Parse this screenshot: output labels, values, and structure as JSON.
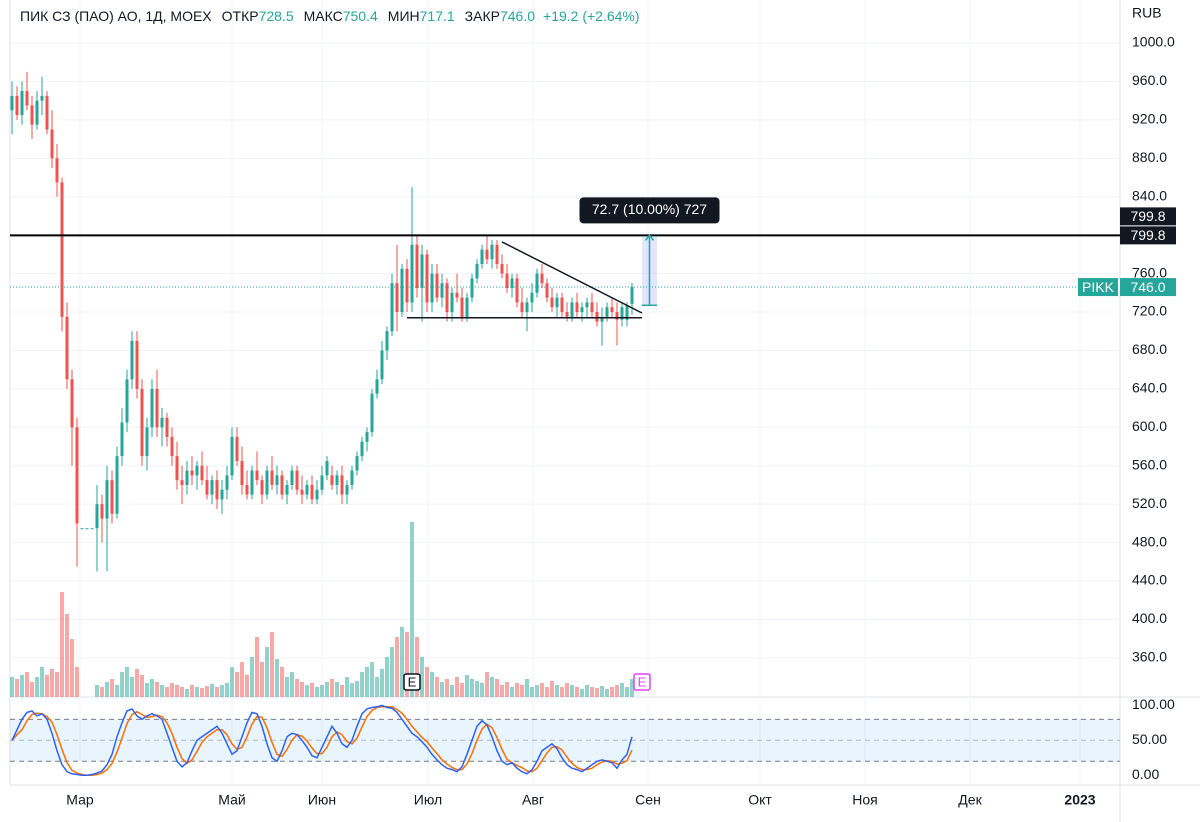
{
  "chart_data": {
    "type": "candlestick",
    "header": {
      "symbol": "ПИК СЗ (ПАО) АО, 1Д, MOEX",
      "fields": [
        {
          "label": "ОТКР",
          "value": "728.5"
        },
        {
          "label": "МАКС",
          "value": "750.4"
        },
        {
          "label": "МИН",
          "value": "717.1"
        },
        {
          "label": "ЗАКР",
          "value": "746.0"
        }
      ],
      "change": "+19.2 (+2.64%)"
    },
    "currency": "RUB",
    "symbol_tag": "PIKK",
    "colors": {
      "up": "#26a69a",
      "down": "#ef5350"
    },
    "candles": [
      [
        930,
        960,
        905,
        945
      ],
      [
        945,
        955,
        920,
        925
      ],
      [
        925,
        960,
        915,
        950
      ],
      [
        950,
        970,
        930,
        935
      ],
      [
        935,
        945,
        900,
        915
      ],
      [
        915,
        950,
        910,
        940
      ],
      [
        940,
        965,
        925,
        945
      ],
      [
        945,
        950,
        905,
        910
      ],
      [
        910,
        930,
        870,
        880
      ],
      [
        880,
        895,
        840,
        855
      ],
      [
        855,
        860,
        700,
        715
      ],
      [
        715,
        730,
        640,
        650
      ],
      [
        650,
        660,
        560,
        600
      ],
      [
        600,
        610,
        455,
        500
      ],
      [
        495,
        495,
        495,
        495
      ],
      [
        495,
        495,
        495,
        495
      ],
      [
        495,
        495,
        495,
        495
      ],
      [
        495,
        540,
        450,
        520
      ],
      [
        520,
        530,
        480,
        505
      ],
      [
        505,
        560,
        450,
        545
      ],
      [
        545,
        555,
        500,
        510
      ],
      [
        510,
        580,
        505,
        570
      ],
      [
        570,
        620,
        560,
        605
      ],
      [
        605,
        660,
        595,
        650
      ],
      [
        650,
        700,
        640,
        690
      ],
      [
        690,
        700,
        630,
        640
      ],
      [
        640,
        650,
        560,
        570
      ],
      [
        570,
        610,
        555,
        600
      ],
      [
        600,
        650,
        590,
        640
      ],
      [
        640,
        660,
        590,
        600
      ],
      [
        600,
        620,
        580,
        610
      ],
      [
        610,
        615,
        580,
        590
      ],
      [
        590,
        600,
        560,
        570
      ],
      [
        570,
        585,
        535,
        545
      ],
      [
        545,
        560,
        520,
        540
      ],
      [
        540,
        565,
        530,
        555
      ],
      [
        555,
        570,
        540,
        550
      ],
      [
        550,
        565,
        535,
        560
      ],
      [
        560,
        575,
        540,
        545
      ],
      [
        545,
        560,
        525,
        530
      ],
      [
        530,
        550,
        520,
        545
      ],
      [
        545,
        555,
        515,
        525
      ],
      [
        525,
        545,
        510,
        535
      ],
      [
        535,
        560,
        525,
        550
      ],
      [
        550,
        600,
        545,
        590
      ],
      [
        590,
        600,
        560,
        565
      ],
      [
        565,
        580,
        530,
        540
      ],
      [
        540,
        555,
        525,
        530
      ],
      [
        530,
        560,
        525,
        555
      ],
      [
        555,
        575,
        540,
        545
      ],
      [
        545,
        550,
        520,
        530
      ],
      [
        530,
        560,
        525,
        555
      ],
      [
        555,
        570,
        535,
        540
      ],
      [
        540,
        560,
        530,
        550
      ],
      [
        550,
        555,
        525,
        530
      ],
      [
        530,
        545,
        520,
        540
      ],
      [
        540,
        560,
        535,
        555
      ],
      [
        555,
        560,
        530,
        535
      ],
      [
        535,
        550,
        520,
        530
      ],
      [
        530,
        545,
        525,
        540
      ],
      [
        540,
        550,
        520,
        525
      ],
      [
        525,
        545,
        520,
        535
      ],
      [
        535,
        560,
        530,
        550
      ],
      [
        550,
        570,
        545,
        565
      ],
      [
        550,
        560,
        535,
        540
      ],
      [
        540,
        555,
        530,
        550
      ],
      [
        550,
        560,
        520,
        530
      ],
      [
        530,
        545,
        520,
        540
      ],
      [
        540,
        560,
        535,
        555
      ],
      [
        555,
        575,
        550,
        570
      ],
      [
        570,
        590,
        565,
        585
      ],
      [
        585,
        600,
        575,
        595
      ],
      [
        595,
        640,
        590,
        635
      ],
      [
        635,
        660,
        630,
        650
      ],
      [
        650,
        690,
        645,
        680
      ],
      [
        680,
        705,
        670,
        700
      ],
      [
        700,
        760,
        695,
        750
      ],
      [
        750,
        790,
        700,
        720
      ],
      [
        720,
        770,
        715,
        765
      ],
      [
        765,
        775,
        720,
        730
      ],
      [
        730,
        850,
        720,
        790
      ],
      [
        790,
        800,
        735,
        745
      ],
      [
        745,
        790,
        710,
        780
      ],
      [
        780,
        785,
        720,
        730
      ],
      [
        730,
        770,
        720,
        760
      ],
      [
        760,
        770,
        730,
        735
      ],
      [
        735,
        760,
        725,
        750
      ],
      [
        750,
        755,
        710,
        720
      ],
      [
        720,
        745,
        710,
        740
      ],
      [
        740,
        760,
        730,
        735
      ],
      [
        735,
        745,
        710,
        715
      ],
      [
        715,
        740,
        710,
        735
      ],
      [
        735,
        760,
        730,
        755
      ],
      [
        755,
        775,
        750,
        770
      ],
      [
        770,
        790,
        765,
        785
      ],
      [
        785,
        800,
        770,
        775
      ],
      [
        775,
        795,
        765,
        790
      ],
      [
        790,
        795,
        765,
        770
      ],
      [
        770,
        780,
        755,
        760
      ],
      [
        760,
        770,
        740,
        745
      ],
      [
        745,
        760,
        735,
        755
      ],
      [
        755,
        760,
        725,
        730
      ],
      [
        730,
        745,
        715,
        720
      ],
      [
        720,
        735,
        700,
        730
      ],
      [
        730,
        750,
        720,
        740
      ],
      [
        740,
        765,
        735,
        760
      ],
      [
        760,
        770,
        745,
        750
      ],
      [
        750,
        755,
        730,
        735
      ],
      [
        735,
        745,
        720,
        725
      ],
      [
        725,
        740,
        715,
        735
      ],
      [
        735,
        740,
        715,
        720
      ],
      [
        720,
        730,
        710,
        715
      ],
      [
        715,
        735,
        710,
        730
      ],
      [
        730,
        740,
        715,
        720
      ],
      [
        720,
        730,
        710,
        725
      ],
      [
        725,
        735,
        715,
        730
      ],
      [
        730,
        740,
        715,
        720
      ],
      [
        720,
        730,
        705,
        710
      ],
      [
        710,
        725,
        685,
        715
      ],
      [
        715,
        730,
        710,
        725
      ],
      [
        725,
        735,
        715,
        720
      ],
      [
        720,
        730,
        685,
        712
      ],
      [
        712,
        730,
        705,
        725
      ],
      [
        712,
        730,
        705,
        726.8
      ],
      [
        728.5,
        750.4,
        717.1,
        746.0
      ]
    ],
    "volume": [
      20,
      18,
      22,
      25,
      15,
      20,
      30,
      22,
      28,
      25,
      105,
      83,
      58,
      30,
      0,
      0,
      0,
      12,
      10,
      15,
      18,
      12,
      25,
      30,
      20,
      28,
      22,
      14,
      18,
      15,
      12,
      10,
      14,
      12,
      10,
      8,
      12,
      10,
      9,
      11,
      13,
      10,
      12,
      14,
      30,
      25,
      35,
      22,
      40,
      60,
      35,
      50,
      65,
      38,
      30,
      20,
      25,
      18,
      15,
      12,
      14,
      10,
      12,
      15,
      18,
      15,
      12,
      20,
      14,
      16,
      25,
      30,
      35,
      20,
      28,
      40,
      50,
      60,
      70,
      65,
      175,
      60,
      40,
      30,
      25,
      20,
      15,
      18,
      12,
      20,
      14,
      22,
      18,
      16,
      14,
      25,
      20,
      18,
      12,
      15,
      10,
      14,
      12,
      18,
      10,
      12,
      14,
      10,
      16,
      12,
      10,
      14,
      12,
      10,
      8,
      12,
      10,
      9,
      11,
      8,
      10,
      12,
      14,
      10,
      18
    ],
    "volume_lim": [
      0,
      400
    ],
    "xlim": [
      -0.4,
      221.6
    ],
    "xticks": [
      {
        "value": 13.6,
        "label": "Мар"
      },
      {
        "value": 44,
        "label": "Май"
      },
      {
        "value": 62,
        "label": "Июн"
      },
      {
        "value": 83.2,
        "label": "Июл"
      },
      {
        "value": 104.2,
        "label": "Авг"
      },
      {
        "value": 127.2,
        "label": "Сен"
      },
      {
        "value": 149.6,
        "label": "Окт"
      },
      {
        "value": 170.6,
        "label": "Ноя"
      },
      {
        "value": 191.6,
        "label": "Дек"
      },
      {
        "value": 213.6,
        "label": "2023"
      }
    ],
    "ylim": [
      319.3,
      1044.8
    ],
    "yticks": [
      {
        "value": 360,
        "label": "360.0"
      },
      {
        "value": 400,
        "label": "400.0"
      },
      {
        "value": 440,
        "label": "440.0"
      },
      {
        "value": 480,
        "label": "480.0"
      },
      {
        "value": 520,
        "label": "520.0"
      },
      {
        "value": 560,
        "label": "560.0"
      },
      {
        "value": 600,
        "label": "600.0"
      },
      {
        "value": 640,
        "label": "640.0"
      },
      {
        "value": 680,
        "label": "680.0"
      },
      {
        "value": 720,
        "label": "720.0"
      },
      {
        "value": 760,
        "label": "760.0"
      },
      {
        "value": 800,
        "label": "800.0"
      },
      {
        "value": 840,
        "label": "840.0"
      },
      {
        "value": 880,
        "label": "880.0"
      },
      {
        "value": 920,
        "label": "920.0"
      },
      {
        "value": 960,
        "label": "960.0"
      },
      {
        "value": 1000,
        "label": "1000.0"
      }
    ],
    "grid": true,
    "hline": {
      "price": 799.8,
      "color": "#000000"
    },
    "trend_lines": [
      [
        [
          98,
          793
        ],
        [
          126,
          719
        ]
      ],
      [
        [
          79,
          714
        ],
        [
          126,
          714
        ]
      ]
    ],
    "measure": {
      "from": 727,
      "to": 799.8,
      "x": [
        126,
        129
      ],
      "label": "72.7 (10.00%) 727"
    },
    "events": [
      {
        "x": 80,
        "label": "E",
        "color": "#131722"
      },
      {
        "x": 126,
        "label": "E",
        "color": "#e040fb"
      }
    ],
    "stochastic": {
      "ylim": [
        -14,
        112
      ],
      "yticks": [
        {
          "value": 100,
          "label": "100.00"
        },
        {
          "value": 50,
          "label": "50.00"
        },
        {
          "value": 0,
          "label": "0.00"
        }
      ],
      "bands": [
        20,
        80
      ],
      "series": [
        {
          "color": "#2962ff",
          "values": [
            50,
            65,
            80,
            90,
            92,
            85,
            88,
            80,
            60,
            35,
            15,
            5,
            2,
            1,
            0,
            0,
            1,
            3,
            6,
            15,
            30,
            55,
            75,
            92,
            95,
            85,
            80,
            85,
            88,
            85,
            80,
            60,
            40,
            20,
            12,
            18,
            35,
            50,
            55,
            60,
            65,
            70,
            60,
            45,
            30,
            35,
            55,
            75,
            90,
            88,
            70,
            45,
            25,
            20,
            35,
            55,
            60,
            58,
            50,
            40,
            28,
            25,
            40,
            55,
            70,
            60,
            45,
            40,
            50,
            70,
            88,
            95,
            97,
            98,
            100,
            97,
            96,
            90,
            80,
            70,
            60,
            55,
            48,
            40,
            30,
            22,
            15,
            10,
            8,
            5,
            12,
            30,
            50,
            70,
            78,
            72,
            55,
            35,
            20,
            15,
            18,
            10,
            5,
            2,
            8,
            20,
            35,
            40,
            45,
            38,
            25,
            15,
            10,
            8,
            5,
            10,
            15,
            20,
            22,
            20,
            18,
            10,
            22,
            30,
            55
          ]
        },
        {
          "color": "#ff6d00",
          "values": [
            50,
            58,
            65,
            78,
            87,
            89,
            88,
            84,
            76,
            58,
            37,
            18,
            7,
            3,
            1,
            0,
            0,
            1,
            3,
            8,
            17,
            33,
            53,
            74,
            87,
            91,
            87,
            83,
            84,
            86,
            84,
            75,
            60,
            40,
            24,
            17,
            22,
            34,
            47,
            55,
            60,
            65,
            65,
            58,
            45,
            37,
            40,
            55,
            73,
            84,
            83,
            68,
            47,
            30,
            27,
            37,
            50,
            58,
            56,
            49,
            39,
            31,
            31,
            40,
            55,
            62,
            58,
            48,
            45,
            53,
            69,
            84,
            93,
            97,
            98,
            98,
            98,
            94,
            89,
            80,
            70,
            62,
            54,
            48,
            39,
            31,
            22,
            16,
            11,
            8,
            8,
            16,
            31,
            50,
            66,
            73,
            68,
            54,
            37,
            23,
            18,
            14,
            11,
            6,
            5,
            10,
            21,
            32,
            40,
            41,
            36,
            26,
            17,
            11,
            8,
            8,
            10,
            15,
            19,
            21,
            20,
            16,
            17,
            21,
            36
          ]
        }
      ]
    }
  }
}
